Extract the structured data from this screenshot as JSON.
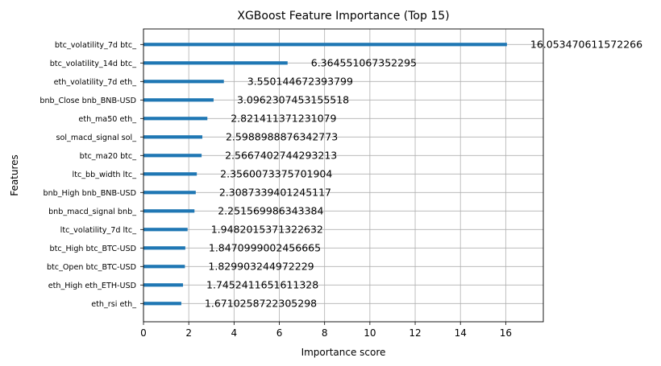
{
  "chart_data": {
    "type": "bar",
    "orientation": "horizontal",
    "title": "XGBoost Feature Importance (Top 15)",
    "xlabel": "Importance score",
    "ylabel": "Features",
    "xlim": [
      0,
      17.66
    ],
    "xticks": [
      0,
      2,
      4,
      6,
      8,
      10,
      12,
      14,
      16
    ],
    "grid": true,
    "bar_color": "#1f77b4",
    "categories": [
      "btc_volatility_7d btc_",
      "btc_volatility_14d btc_",
      "eth_volatility_7d eth_",
      "bnb_Close bnb_BNB-USD",
      "eth_ma50 eth_",
      "sol_macd_signal sol_",
      "btc_ma20 btc_",
      "ltc_bb_width ltc_",
      "bnb_High bnb_BNB-USD",
      "bnb_macd_signal bnb_",
      "ltc_volatility_7d ltc_",
      "btc_High btc_BTC-USD",
      "btc_Open btc_BTC-USD",
      "eth_High eth_ETH-USD",
      "eth_rsi eth_"
    ],
    "values": [
      16.053470611572266,
      6.364551067352295,
      3.550144672393799,
      3.0962307453155518,
      2.821411371231079,
      2.5988988876342773,
      2.5667402744293213,
      2.3560073375701904,
      2.3087339401245117,
      2.251569986343384,
      1.9482015371322632,
      1.8470999002456665,
      1.829903244972229,
      1.7452411651611328,
      1.6710258722305298
    ],
    "value_labels": [
      "16.053470611572266",
      "6.364551067352295",
      "3.550144672393799",
      "3.0962307453155518",
      "2.821411371231079",
      "2.5988988876342773",
      "2.5667402744293213",
      "2.3560073375701904",
      "2.3087339401245117",
      "2.251569986343384",
      "1.9482015371322632",
      "1.8470999002456665",
      "1.829903244972229",
      "1.7452411651611328",
      "1.6710258722305298"
    ]
  }
}
